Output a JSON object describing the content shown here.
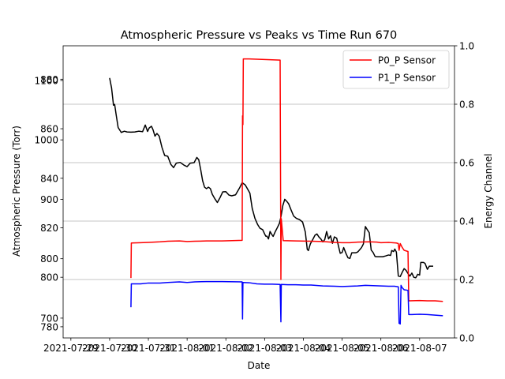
{
  "chart_data": {
    "type": "line",
    "title": "Atmospheric Pressure vs Peaks vs Time Run 670",
    "xlabel": "Date",
    "ylabel_left": "Atmospheric Pressure (Torr)",
    "ylabel_right": "Energy Channel",
    "x_tick_labels": [
      "2021-07-29",
      "2021-07-30",
      "2021-07-31",
      "2021-08-01",
      "2021-08-02",
      "2021-08-03",
      "2021-08-04",
      "2021-08-05",
      "2021-08-06",
      "2021-08-07"
    ],
    "left_axis_labels_overlapping": [
      [
        "1100",
        "880"
      ],
      [
        "1000",
        "860"
      ],
      [
        "900",
        "840"
      ],
      [
        "800",
        "820"
      ],
      [
        "800",
        "800"
      ],
      [
        "700",
        "780"
      ]
    ],
    "left_tick_labels": [
      {
        "text": "880",
        "y_pressure": 880.0
      },
      {
        "text": "1100",
        "y_pressure": 879.5
      },
      {
        "text": "860",
        "y_pressure": 860.0
      },
      {
        "text": "1000",
        "y_pressure": 855.5
      },
      {
        "text": "840",
        "y_pressure": 840.0
      },
      {
        "text": "900",
        "y_pressure": 831.5
      },
      {
        "text": "820",
        "y_pressure": 820.0
      },
      {
        "text": "800",
        "y_pressure": 807.5
      },
      {
        "text": "800",
        "y_pressure": 800.0
      },
      {
        "text": "700",
        "y_pressure": 783.5
      },
      {
        "text": "780",
        "y_pressure": 780.0
      }
    ],
    "right_ylim": [
      0.0,
      1.0
    ],
    "right_ticks": [
      0.0,
      0.2,
      0.4,
      0.6,
      0.8,
      1.0
    ],
    "right_tick_labels": [
      "0.0",
      "0.2",
      "0.4",
      "0.6",
      "0.8",
      "1.0"
    ],
    "left_ylim_pressure": [
      775.5,
      893.5
    ],
    "xlim_days": [
      -0.2,
      9.9
    ],
    "grid": "horizontal at right-axis ticks",
    "legend": {
      "placement": "top-right",
      "entries": [
        {
          "label": "P0_P Sensor",
          "color": "#ff0000"
        },
        {
          "label": "P1_P Sensor",
          "color": "#0000ff"
        }
      ]
    },
    "series": [
      {
        "name": "",
        "color": "#000000",
        "axis": "left",
        "points": [
          [
            1.0,
            880.5
          ],
          [
            1.05,
            876.5
          ],
          [
            1.1,
            869.5
          ],
          [
            1.13,
            869.8
          ],
          [
            1.17,
            865.5
          ],
          [
            1.22,
            860.5
          ],
          [
            1.3,
            858.5
          ],
          [
            1.38,
            859
          ],
          [
            1.45,
            858.7
          ],
          [
            1.55,
            858.6
          ],
          [
            1.65,
            858.7
          ],
          [
            1.75,
            859
          ],
          [
            1.85,
            858.8
          ],
          [
            1.92,
            861.5
          ],
          [
            1.98,
            858.9
          ],
          [
            2.02,
            860.3
          ],
          [
            2.08,
            861
          ],
          [
            2.12,
            859.6
          ],
          [
            2.17,
            857
          ],
          [
            2.22,
            858.1
          ],
          [
            2.28,
            857
          ],
          [
            2.35,
            852.5
          ],
          [
            2.42,
            849.2
          ],
          [
            2.5,
            848.9
          ],
          [
            2.58,
            845.6
          ],
          [
            2.65,
            844.3
          ],
          [
            2.72,
            846.1
          ],
          [
            2.82,
            846.4
          ],
          [
            2.92,
            845.3
          ],
          [
            3.0,
            844.7
          ],
          [
            3.08,
            846.1
          ],
          [
            3.18,
            846.3
          ],
          [
            3.25,
            848.4
          ],
          [
            3.3,
            847.5
          ],
          [
            3.35,
            843.5
          ],
          [
            3.4,
            839
          ],
          [
            3.45,
            836.4
          ],
          [
            3.5,
            835.8
          ],
          [
            3.55,
            836.4
          ],
          [
            3.6,
            835.8
          ],
          [
            3.65,
            833.5
          ],
          [
            3.72,
            831.6
          ],
          [
            3.78,
            830.2
          ],
          [
            3.85,
            832.2
          ],
          [
            3.92,
            834.5
          ],
          [
            4.0,
            834.6
          ],
          [
            4.08,
            833.2
          ],
          [
            4.15,
            832.9
          ],
          [
            4.25,
            833.3
          ],
          [
            4.35,
            836
          ],
          [
            4.42,
            838.2
          ],
          [
            4.5,
            837.3
          ],
          [
            4.58,
            835.1
          ],
          [
            4.62,
            834
          ],
          [
            4.68,
            827.8
          ],
          [
            4.75,
            823.8
          ],
          [
            4.82,
            821.3
          ],
          [
            4.88,
            819.8
          ],
          [
            4.95,
            819.2
          ],
          [
            5.0,
            817.5
          ],
          [
            5.03,
            816.6
          ],
          [
            5.06,
            816.6
          ],
          [
            5.1,
            815.5
          ],
          [
            5.14,
            818.5
          ],
          [
            5.18,
            817.4
          ],
          [
            5.22,
            816.5
          ],
          [
            5.28,
            818.6
          ],
          [
            5.32,
            819.8
          ],
          [
            5.38,
            821.7
          ],
          [
            5.42,
            824.3
          ],
          [
            5.47,
            829
          ],
          [
            5.52,
            831.5
          ],
          [
            5.58,
            830.5
          ],
          [
            5.62,
            829.7
          ],
          [
            5.68,
            827.3
          ],
          [
            5.75,
            824.7
          ],
          [
            5.82,
            823.8
          ],
          [
            5.9,
            823.3
          ],
          [
            5.98,
            822.3
          ],
          [
            6.05,
            818.3
          ],
          [
            6.1,
            811.3
          ],
          [
            6.13,
            810.8
          ],
          [
            6.18,
            813.5
          ],
          [
            6.25,
            815.5
          ],
          [
            6.3,
            817
          ],
          [
            6.35,
            817.5
          ],
          [
            6.4,
            816.3
          ],
          [
            6.45,
            815.5
          ],
          [
            6.5,
            814.3
          ],
          [
            6.55,
            815.2
          ],
          [
            6.6,
            818.5
          ],
          [
            6.65,
            815.5
          ],
          [
            6.7,
            816.8
          ],
          [
            6.75,
            813.7
          ],
          [
            6.8,
            816.3
          ],
          [
            6.86,
            815.8
          ],
          [
            6.9,
            813
          ],
          [
            6.95,
            809.7
          ],
          [
            7.0,
            810
          ],
          [
            7.04,
            812
          ],
          [
            7.1,
            809.6
          ],
          [
            7.15,
            807.9
          ],
          [
            7.2,
            807.6
          ],
          [
            7.25,
            809.9
          ],
          [
            7.3,
            809.9
          ],
          [
            7.35,
            809.9
          ],
          [
            7.4,
            810.2
          ],
          [
            7.43,
            810.7
          ],
          [
            7.5,
            812
          ],
          [
            7.55,
            813.5
          ],
          [
            7.6,
            820.5
          ],
          [
            7.65,
            819.2
          ],
          [
            7.7,
            818
          ],
          [
            7.75,
            811
          ],
          [
            7.8,
            810
          ],
          [
            7.85,
            808.4
          ],
          [
            7.9,
            808.3
          ],
          [
            7.95,
            808.3
          ],
          [
            8.0,
            808.3
          ],
          [
            8.05,
            808.3
          ],
          [
            8.12,
            808.6
          ],
          [
            8.2,
            809
          ],
          [
            8.25,
            808.8
          ],
          [
            8.28,
            810.8
          ],
          [
            8.33,
            810.4
          ],
          [
            8.36,
            811.4
          ],
          [
            8.4,
            810.2
          ],
          [
            8.45,
            800.5
          ],
          [
            8.5,
            800.3
          ],
          [
            8.55,
            802
          ],
          [
            8.6,
            803.5
          ],
          [
            8.65,
            802.8
          ],
          [
            8.7,
            801.5
          ],
          [
            8.75,
            800.5
          ],
          [
            8.8,
            801.7
          ],
          [
            8.85,
            800
          ],
          [
            8.9,
            799.8
          ],
          [
            8.95,
            801.2
          ],
          [
            9.0,
            800.9
          ],
          [
            9.03,
            806
          ],
          [
            9.1,
            806
          ],
          [
            9.14,
            805.6
          ],
          [
            9.2,
            803.2
          ],
          [
            9.25,
            804.5
          ],
          [
            9.3,
            804.5
          ],
          [
            9.35,
            804.5
          ]
        ]
      },
      {
        "name": "P0_P Sensor",
        "color": "#ff0000",
        "axis": "right",
        "points": [
          [
            1.55,
            0.205
          ],
          [
            1.56,
            0.325
          ],
          [
            1.8,
            0.326
          ],
          [
            2.0,
            0.327
          ],
          [
            2.3,
            0.329
          ],
          [
            2.5,
            0.331
          ],
          [
            2.8,
            0.332
          ],
          [
            3.0,
            0.33
          ],
          [
            3.2,
            0.331
          ],
          [
            3.5,
            0.332
          ],
          [
            3.9,
            0.332
          ],
          [
            4.42,
            0.334
          ],
          [
            4.43,
            0.76
          ],
          [
            4.44,
            0.73
          ],
          [
            4.45,
            0.955
          ],
          [
            4.6,
            0.955
          ],
          [
            5.0,
            0.953
          ],
          [
            5.4,
            0.951
          ],
          [
            5.42,
            0.2
          ],
          [
            5.43,
            0.408
          ],
          [
            5.48,
            0.333
          ],
          [
            5.8,
            0.332
          ],
          [
            6.2,
            0.331
          ],
          [
            6.5,
            0.33
          ],
          [
            6.8,
            0.327
          ],
          [
            7.0,
            0.326
          ],
          [
            7.2,
            0.326
          ],
          [
            7.4,
            0.328
          ],
          [
            7.7,
            0.329
          ],
          [
            7.9,
            0.328
          ],
          [
            8.0,
            0.326
          ],
          [
            8.2,
            0.327
          ],
          [
            8.4,
            0.325
          ],
          [
            8.45,
            0.323
          ],
          [
            8.47,
            0.3
          ],
          [
            8.5,
            0.323
          ],
          [
            8.55,
            0.31
          ],
          [
            8.6,
            0.3
          ],
          [
            8.7,
            0.296
          ],
          [
            8.72,
            0.127
          ],
          [
            9.0,
            0.128
          ],
          [
            9.2,
            0.127
          ],
          [
            9.4,
            0.127
          ],
          [
            9.6,
            0.125
          ]
        ]
      },
      {
        "name": "P1_P Sensor",
        "color": "#0000ff",
        "axis": "right",
        "points": [
          [
            1.55,
            0.105
          ],
          [
            1.56,
            0.185
          ],
          [
            1.8,
            0.185
          ],
          [
            2.0,
            0.188
          ],
          [
            2.3,
            0.188
          ],
          [
            2.5,
            0.19
          ],
          [
            2.8,
            0.192
          ],
          [
            3.0,
            0.19
          ],
          [
            3.2,
            0.192
          ],
          [
            3.5,
            0.193
          ],
          [
            3.9,
            0.193
          ],
          [
            4.42,
            0.192
          ],
          [
            4.43,
            0.065
          ],
          [
            4.44,
            0.19
          ],
          [
            4.6,
            0.189
          ],
          [
            4.8,
            0.185
          ],
          [
            5.0,
            0.184
          ],
          [
            5.2,
            0.184
          ],
          [
            5.4,
            0.183
          ],
          [
            5.42,
            0.055
          ],
          [
            5.43,
            0.183
          ],
          [
            5.6,
            0.182
          ],
          [
            5.8,
            0.182
          ],
          [
            6.0,
            0.181
          ],
          [
            6.2,
            0.181
          ],
          [
            6.5,
            0.178
          ],
          [
            6.8,
            0.177
          ],
          [
            7.0,
            0.176
          ],
          [
            7.2,
            0.177
          ],
          [
            7.4,
            0.178
          ],
          [
            7.6,
            0.18
          ],
          [
            7.8,
            0.179
          ],
          [
            8.0,
            0.178
          ],
          [
            8.2,
            0.177
          ],
          [
            8.35,
            0.177
          ],
          [
            8.45,
            0.175
          ],
          [
            8.47,
            0.05
          ],
          [
            8.5,
            0.048
          ],
          [
            8.52,
            0.18
          ],
          [
            8.55,
            0.172
          ],
          [
            8.6,
            0.165
          ],
          [
            8.7,
            0.163
          ],
          [
            8.72,
            0.08
          ],
          [
            8.8,
            0.08
          ],
          [
            9.0,
            0.081
          ],
          [
            9.2,
            0.08
          ],
          [
            9.4,
            0.078
          ],
          [
            9.6,
            0.076
          ]
        ]
      }
    ]
  }
}
